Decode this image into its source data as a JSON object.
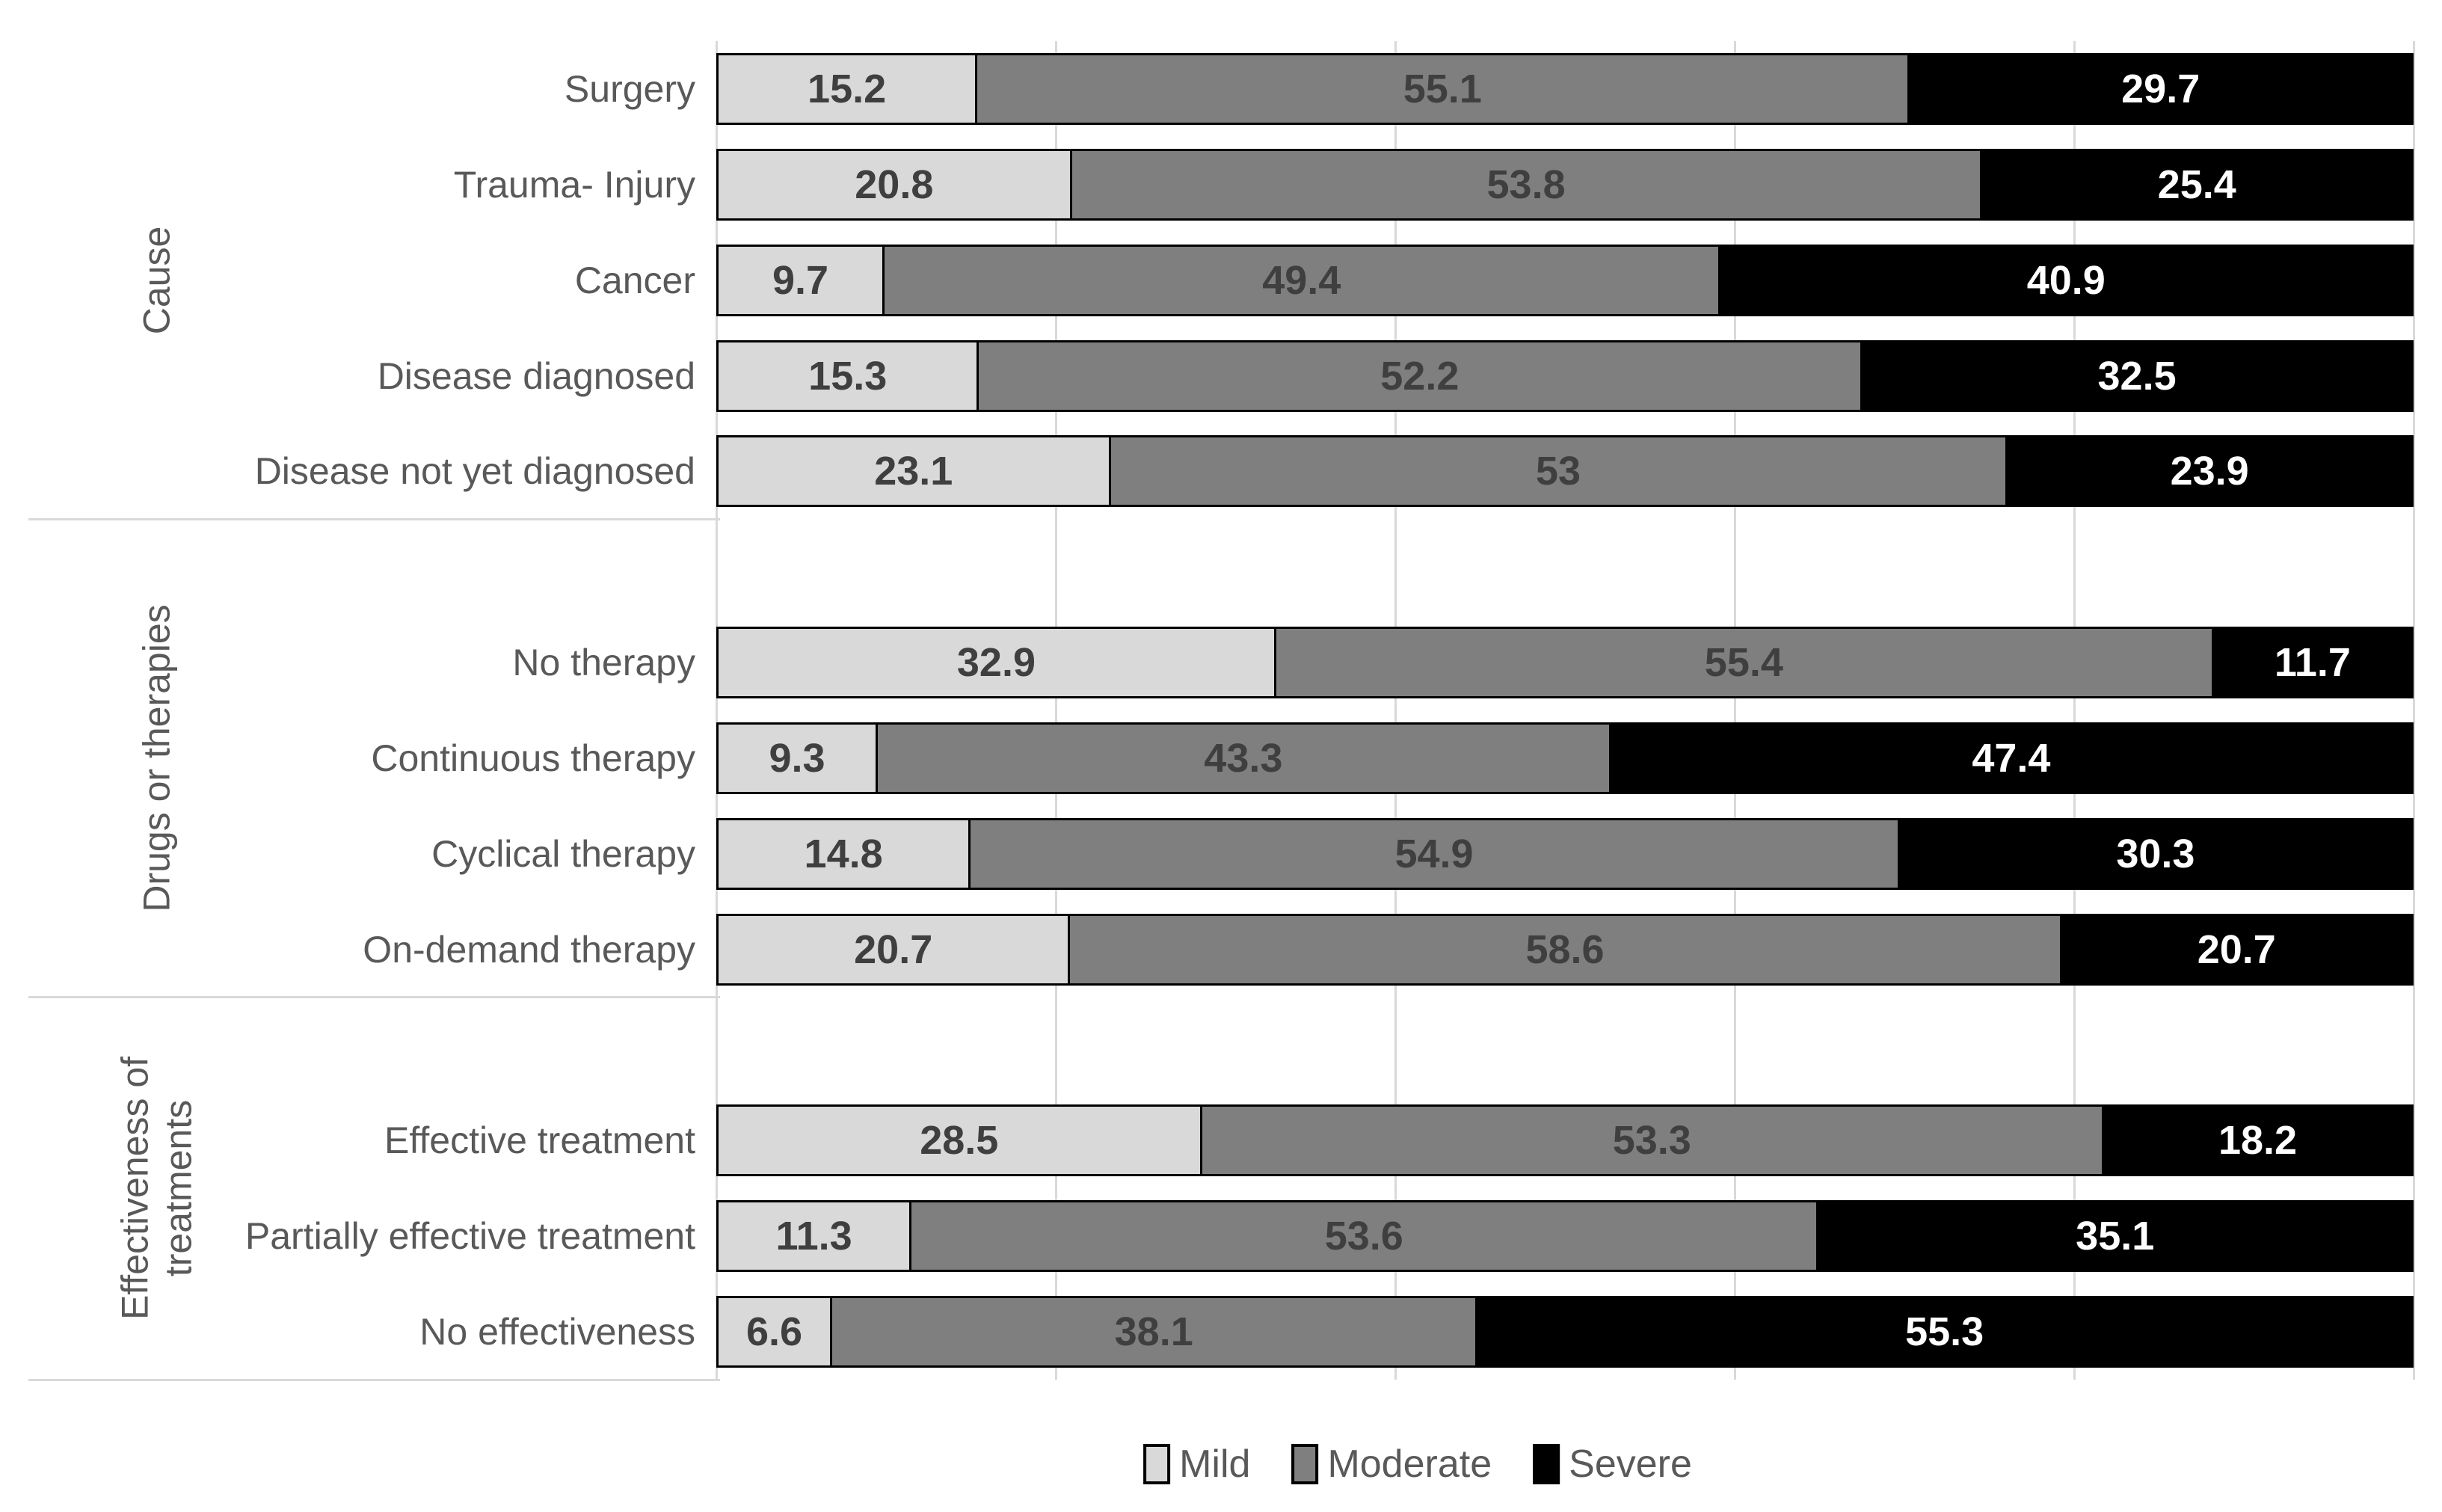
{
  "chart_data": {
    "type": "bar",
    "orientation": "horizontal",
    "stacked": true,
    "title": "",
    "xlabel": "",
    "ylabel": "",
    "xlim": [
      0,
      100
    ],
    "gridline_step": 20,
    "grid": true,
    "axis_tick_labels_visible": false,
    "data_labels_visible": true,
    "legend_position": "bottom",
    "series": [
      {
        "name": "Mild",
        "fill": "#d9d9d9",
        "label_color": "#3f3f3f"
      },
      {
        "name": "Moderate",
        "fill": "#7f7f7f",
        "label_color": "#3f3f3f"
      },
      {
        "name": "Severe",
        "fill": "#000000",
        "label_color": "#ffffff"
      }
    ],
    "groups": [
      {
        "label": "Cause",
        "categories": [
          {
            "name": "Surgery",
            "values": [
              15.2,
              55.1,
              29.7
            ]
          },
          {
            "name": "Trauma- Injury",
            "values": [
              20.8,
              53.8,
              25.4
            ]
          },
          {
            "name": "Cancer",
            "values": [
              9.7,
              49.4,
              40.9
            ]
          },
          {
            "name": "Disease diagnosed",
            "values": [
              15.3,
              52.2,
              32.5
            ]
          },
          {
            "name": "Disease not yet diagnosed",
            "values": [
              23.1,
              53,
              23.9
            ]
          }
        ]
      },
      {
        "label": "Drugs or therapies",
        "categories": [
          {
            "name": "No therapy",
            "values": [
              32.9,
              55.4,
              11.7
            ]
          },
          {
            "name": "Continuous therapy",
            "values": [
              9.3,
              43.3,
              47.4
            ]
          },
          {
            "name": "Cyclical therapy",
            "values": [
              14.8,
              54.9,
              30.3
            ]
          },
          {
            "name": "On-demand therapy",
            "values": [
              20.7,
              58.6,
              20.7
            ]
          }
        ]
      },
      {
        "label": "Effectiveness of\ntreatments",
        "categories": [
          {
            "name": "Effective treatment",
            "values": [
              28.5,
              53.3,
              18.2
            ]
          },
          {
            "name": "Partially effective treatment",
            "values": [
              11.3,
              53.6,
              35.1
            ]
          },
          {
            "name": "No effectiveness",
            "values": [
              6.6,
              38.1,
              55.3
            ]
          }
        ]
      }
    ],
    "colors": {
      "gridline": "#d9d9d9",
      "group_divider": "#d9d9d9",
      "axis_text": "#595959",
      "bar_border": "#000000",
      "background": "#ffffff"
    }
  }
}
